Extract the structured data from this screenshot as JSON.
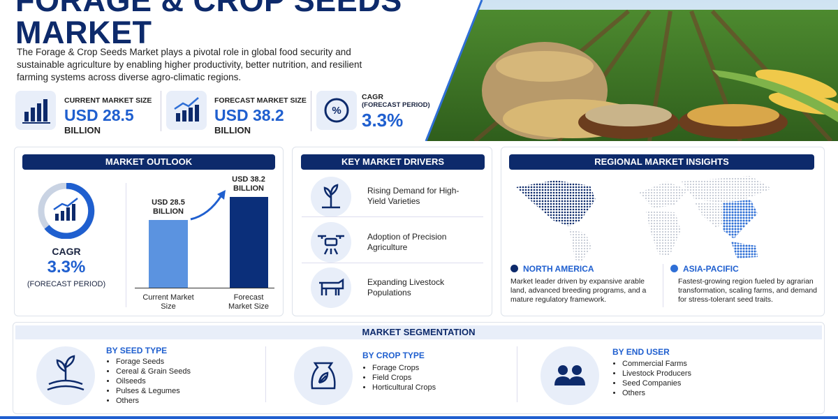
{
  "header": {
    "title": "FORAGE & CROP SEEDS MARKET",
    "description": "The Forage & Crop Seeds Market plays a pivotal role in global food security and sustainable agriculture by enabling higher productivity, better nutrition, and resilient farming systems across diverse agro-climatic regions."
  },
  "metrics": [
    {
      "label": "CURRENT MARKET SIZE",
      "value": "USD 28.5",
      "unit": "BILLION"
    },
    {
      "label": "FORECAST MARKET SIZE",
      "value": "USD 38.2",
      "unit": "BILLION"
    },
    {
      "label": "CAGR",
      "note": "(FORECAST PERIOD)",
      "value": "3.3%"
    }
  ],
  "outlook": {
    "title": "MARKET OUTLOOK",
    "cagr_label": "CAGR",
    "cagr_value": "3.3%",
    "cagr_note": "(FORECAST PERIOD)",
    "bars": [
      {
        "category": "Current Market Size",
        "value": 28.5,
        "label": "USD 28.5 BILLION"
      },
      {
        "category": "Forecast Market Size",
        "value": 38.2,
        "label": "USD 38.2 BILLION"
      }
    ]
  },
  "drivers": {
    "title": "KEY MARKET DRIVERS",
    "items": [
      "Rising Demand for High-Yield Varieties",
      "Adoption of Precision Agriculture",
      "Expanding Livestock Populations"
    ]
  },
  "regional": {
    "title": "REGIONAL MARKET INSIGHTS",
    "regions": [
      {
        "name": "NORTH AMERICA",
        "text": "Market leader driven by expansive arable land, advanced breeding programs, and a mature regulatory framework."
      },
      {
        "name": "ASIA-PACIFIC",
        "text": "Fastest-growing region fueled by agrarian transformation, scaling farms, and demand for stress-tolerant seed traits."
      }
    ]
  },
  "segmentation": {
    "title": "MARKET SEGMENTATION",
    "groups": [
      {
        "title": "BY SEED TYPE",
        "items": [
          "Forage Seeds",
          "Cereal & Grain Seeds",
          "Oilseeds",
          "Pulses & Legumes",
          "Others"
        ]
      },
      {
        "title": "BY CROP TYPE",
        "items": [
          "Forage Crops",
          "Field Crops",
          "Horticultural Crops"
        ]
      },
      {
        "title": "BY END USER",
        "items": [
          "Commercial Farms",
          "Livestock Producers",
          "Seed Companies",
          "Others"
        ]
      }
    ]
  }
}
